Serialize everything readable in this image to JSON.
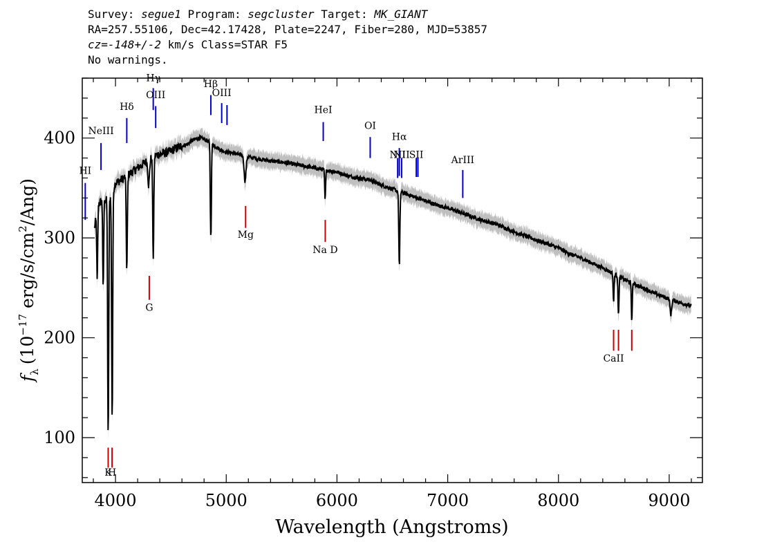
{
  "header": {
    "line1": {
      "survey_label": "Survey:",
      "survey": "segue1",
      "program_label": "Program:",
      "program": "segcluster",
      "target_label": "Target:",
      "target": "MK_GIANT"
    },
    "line2": "RA=257.55106, Dec=42.17428, Plate=2247, Fiber=280, MJD=53857",
    "line3": {
      "cz_label": "cz=",
      "cz_value": "-148+/-2",
      "rest": " km/s Class=STAR F5"
    },
    "line4": "No warnings."
  },
  "chart_data": {
    "type": "line",
    "title": "",
    "xlabel": "Wavelength (Angstroms)",
    "ylabel": "fλ (10⁻¹⁷ erg/s/cm²/Ang)",
    "ylabel_parts": {
      "f": "f",
      "sub": "λ",
      "open": "(10",
      "exp1": "−17",
      "mid": " erg/s/cm",
      "exp2": "2",
      "close": "/Ang)"
    },
    "xlim": [
      3700,
      9300
    ],
    "ylim": [
      55,
      460
    ],
    "xticks": [
      4000,
      5000,
      6000,
      7000,
      8000,
      9000
    ],
    "yticks": [
      100,
      200,
      300,
      400
    ],
    "colors": {
      "flux": "#000000",
      "error_band": "#bfbfbf",
      "emission": "#0000cc",
      "absorption": "#cc0000"
    },
    "continuum": [
      [
        3810,
        310
      ],
      [
        3850,
        335
      ],
      [
        3900,
        338
      ],
      [
        3950,
        340
      ],
      [
        4000,
        355
      ],
      [
        4050,
        358
      ],
      [
        4100,
        362
      ],
      [
        4150,
        366
      ],
      [
        4200,
        370
      ],
      [
        4250,
        374
      ],
      [
        4300,
        378
      ],
      [
        4350,
        382
      ],
      [
        4400,
        384
      ],
      [
        4450,
        385
      ],
      [
        4500,
        387
      ],
      [
        4550,
        390
      ],
      [
        4600,
        392
      ],
      [
        4650,
        394
      ],
      [
        4700,
        398
      ],
      [
        4750,
        400
      ],
      [
        4800,
        399
      ],
      [
        4850,
        396
      ],
      [
        4900,
        392
      ],
      [
        4950,
        388
      ],
      [
        5000,
        386
      ],
      [
        5100,
        384
      ],
      [
        5200,
        381
      ],
      [
        5300,
        379
      ],
      [
        5400,
        377
      ],
      [
        5500,
        376
      ],
      [
        5600,
        374
      ],
      [
        5700,
        372
      ],
      [
        5800,
        370
      ],
      [
        5900,
        368
      ],
      [
        6000,
        366
      ],
      [
        6100,
        362
      ],
      [
        6200,
        360
      ],
      [
        6300,
        358
      ],
      [
        6400,
        353
      ],
      [
        6500,
        349
      ],
      [
        6600,
        345
      ],
      [
        6700,
        341
      ],
      [
        6800,
        337
      ],
      [
        6900,
        333
      ],
      [
        7000,
        330
      ],
      [
        7100,
        326
      ],
      [
        7200,
        322
      ],
      [
        7300,
        318
      ],
      [
        7400,
        315
      ],
      [
        7500,
        311
      ],
      [
        7600,
        306
      ],
      [
        7700,
        302
      ],
      [
        7800,
        298
      ],
      [
        7900,
        294
      ],
      [
        8000,
        290
      ],
      [
        8100,
        284
      ],
      [
        8200,
        280
      ],
      [
        8300,
        275
      ],
      [
        8400,
        270
      ],
      [
        8500,
        264
      ],
      [
        8600,
        258
      ],
      [
        8700,
        253
      ],
      [
        8800,
        248
      ],
      [
        8900,
        243
      ],
      [
        9000,
        239
      ],
      [
        9100,
        235
      ],
      [
        9200,
        232
      ]
    ],
    "absorption_features": [
      {
        "x": 3835,
        "width": 6,
        "depth": 70
      },
      {
        "x": 3889,
        "width": 6,
        "depth": 90
      },
      {
        "x": 3934,
        "width": 7,
        "depth": 240
      },
      {
        "x": 3970,
        "width": 7,
        "depth": 225
      },
      {
        "x": 4102,
        "width": 7,
        "depth": 95
      },
      {
        "x": 4300,
        "width": 10,
        "depth": 25
      },
      {
        "x": 4341,
        "width": 7,
        "depth": 100
      },
      {
        "x": 4861,
        "width": 7,
        "depth": 95
      },
      {
        "x": 5170,
        "width": 12,
        "depth": 25
      },
      {
        "x": 5893,
        "width": 6,
        "depth": 30
      },
      {
        "x": 6563,
        "width": 7,
        "depth": 75
      },
      {
        "x": 8498,
        "width": 6,
        "depth": 28
      },
      {
        "x": 8542,
        "width": 6,
        "depth": 40
      },
      {
        "x": 8662,
        "width": 6,
        "depth": 38
      },
      {
        "x": 9015,
        "width": 10,
        "depth": 15
      }
    ],
    "emission_lines": [
      {
        "label": "HI",
        "x": 3727,
        "y_top": 355,
        "y_bot": 318,
        "label_y": 364
      },
      {
        "label": "NeIII",
        "x": 3869,
        "y_top": 395,
        "y_bot": 368,
        "label_y": 404
      },
      {
        "label": "Hδ",
        "x": 4102,
        "y_top": 420,
        "y_bot": 395,
        "label_y": 428
      },
      {
        "label": "Hγ",
        "x": 4341,
        "y_top": 450,
        "y_bot": 428,
        "label_y": 457
      },
      {
        "label": "OIII",
        "x": 4363,
        "y_top": 432,
        "y_bot": 410,
        "label_y": 440
      },
      {
        "label": "Hβ",
        "x": 4861,
        "y_top": 443,
        "y_bot": 423,
        "label_y": 451
      },
      {
        "label": "OIII",
        "x": 4959,
        "y_top": 435,
        "y_bot": 415,
        "label_y": 442
      },
      {
        "label": "",
        "x": 5007,
        "y_top": 433,
        "y_bot": 413,
        "label_y": 0
      },
      {
        "label": "HeI",
        "x": 5876,
        "y_top": 416,
        "y_bot": 397,
        "label_y": 425
      },
      {
        "label": "OI",
        "x": 6300,
        "y_top": 401,
        "y_bot": 380,
        "label_y": 409
      },
      {
        "label": "NII",
        "x": 6548,
        "y_top": 380,
        "y_bot": 360,
        "label_y": 380
      },
      {
        "label": "Hα",
        "x": 6563,
        "y_top": 390,
        "y_bot": 362,
        "label_y": 398
      },
      {
        "label": "NII",
        "x": 6584,
        "y_top": 380,
        "y_bot": 360,
        "label_y": 380
      },
      {
        "label": "SII",
        "x": 6716,
        "y_top": 380,
        "y_bot": 361,
        "label_y": 380
      },
      {
        "label": "",
        "x": 6731,
        "y_top": 380,
        "y_bot": 361,
        "label_y": 0
      },
      {
        "label": "ArIII",
        "x": 7136,
        "y_top": 368,
        "y_bot": 340,
        "label_y": 375
      }
    ],
    "absorption_lines": [
      {
        "label": "K",
        "x": 3934,
        "y_top": 90,
        "y_bot": 70,
        "label_y": 62
      },
      {
        "label": "H",
        "x": 3969,
        "y_top": 90,
        "y_bot": 70,
        "label_y": 62
      },
      {
        "label": "G",
        "x": 4305,
        "y_top": 262,
        "y_bot": 238,
        "label_y": 227
      },
      {
        "label": "Mg",
        "x": 5175,
        "y_top": 332,
        "y_bot": 310,
        "label_y": 300
      },
      {
        "label": "Na D",
        "x": 5894,
        "y_top": 318,
        "y_bot": 296,
        "label_y": 285
      },
      {
        "label": "CaII",
        "x": 8498,
        "y_top": 208,
        "y_bot": 187,
        "label_y": 176
      },
      {
        "label": "",
        "x": 8542,
        "y_top": 208,
        "y_bot": 187,
        "label_y": 0
      },
      {
        "label": "",
        "x": 8662,
        "y_top": 208,
        "y_bot": 187,
        "label_y": 0
      }
    ]
  }
}
